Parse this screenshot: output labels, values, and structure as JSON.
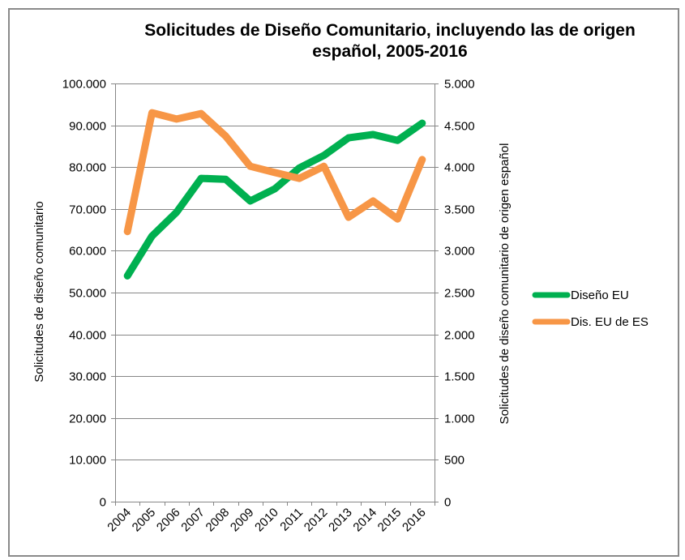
{
  "chart_data": {
    "type": "line",
    "title": "Solicitudes de Diseño Comunitario, incluyendo las de origen español, 2005-2016",
    "title_lines": [
      "Solicitudes  de Diseño Comunitario,  incluyendo  las de origen",
      "español,  2005-2016"
    ],
    "categories": [
      "2004",
      "2005",
      "2006",
      "2007",
      "2008",
      "2009",
      "2010",
      "2011",
      "2012",
      "2013",
      "2014",
      "2015",
      "2016"
    ],
    "series": [
      {
        "name": "Diseño EU",
        "axis": "left",
        "color": "#00B050",
        "values": [
          54000,
          63500,
          69200,
          77300,
          77100,
          71900,
          74800,
          79800,
          82800,
          87000,
          87800,
          86400,
          90500
        ]
      },
      {
        "name": "Dis. EU de ES",
        "axis": "right",
        "color": "#F79646",
        "values": [
          3230,
          4650,
          4575,
          4640,
          4370,
          4010,
          3935,
          3865,
          4010,
          3400,
          3595,
          3380,
          4090
        ]
      }
    ],
    "y_left": {
      "label": "Solicitudes  de diseño  comunitario",
      "ylim": [
        0,
        100000
      ],
      "ticks": [
        0,
        10000,
        20000,
        30000,
        40000,
        50000,
        60000,
        70000,
        80000,
        90000,
        100000
      ],
      "tick_labels": [
        "0",
        "10.000",
        "20.000",
        "30.000",
        "40.000",
        "50.000",
        "60.000",
        "70.000",
        "80.000",
        "90.000",
        "100.000"
      ]
    },
    "y_right": {
      "label": "Solicitudes  de diseño  comunitario  de origen  español",
      "ylim": [
        0,
        5000
      ],
      "ticks": [
        0,
        500,
        1000,
        1500,
        2000,
        2500,
        3000,
        3500,
        4000,
        4500,
        5000
      ],
      "tick_labels": [
        "0",
        "500",
        "1.000",
        "1.500",
        "2.000",
        "2.500",
        "3.000",
        "3.500",
        "4.000",
        "4.500",
        "5.000"
      ]
    },
    "xlabel": "",
    "grid": true,
    "legend_position": "right",
    "colors": {
      "gridline": "#868686",
      "frame": "#8a8a8a"
    }
  }
}
